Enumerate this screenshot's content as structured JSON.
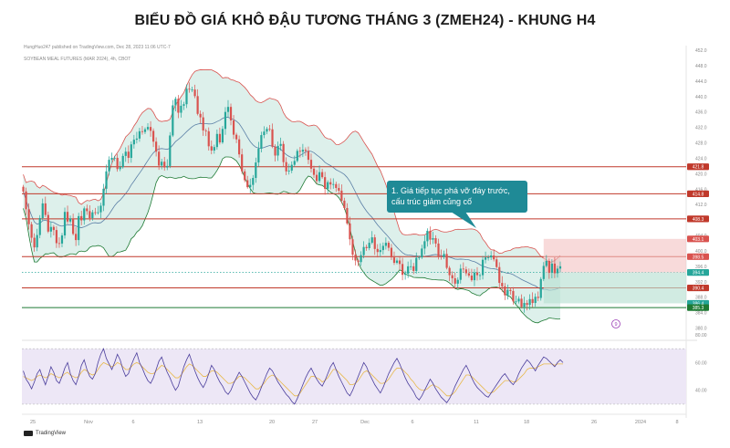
{
  "header": {
    "title": "BIỂU ĐỒ GIÁ KHÔ ĐẬU TƯƠNG THÁNG 3 (ZMEH24) - KHUNG H4",
    "publisher": "HungHuo247 published on TradingView.com, Dec 28, 2023 11:06 UTC-7",
    "symbol": "SOYBEAN MEAL FUTURES (MAR 2024), 4h, CBOT",
    "logo": "TradingView"
  },
  "colors": {
    "up": "#26a69a",
    "down": "#d9534f",
    "bb_band": "#d9534f",
    "bb_fill": "#cfe9e2",
    "mid_band": "#5b7fa6",
    "level_line": "#c0392b",
    "support_green": "#1e7a34",
    "callout": "#1f8a96",
    "rsi_line": "#4b3e9c",
    "rsi_ma": "#e8b94b",
    "rsi_fill": "#ede7f6"
  },
  "chart_data": [
    {
      "type": "candlestick",
      "title": "",
      "ylim": [
        378,
        452
      ],
      "y_ticks": [
        380.0,
        384.0,
        388.0,
        392.0,
        396.0,
        400.0,
        404.0,
        408.0,
        412.0,
        416.0,
        420.0,
        424.0,
        428.0,
        432.0,
        436.0,
        440.0,
        444.0,
        448.0,
        452.0
      ],
      "x_tick_labels": [
        "25",
        "Nov",
        "6",
        "13",
        "20",
        "27",
        "Dec",
        "6",
        "11",
        "18",
        "26",
        "2024",
        "8"
      ],
      "close_series": [
        415.4,
        410.8,
        406.9,
        403.4,
        400.9,
        404.1,
        408.5,
        412.3,
        409.3,
        405.0,
        406.2,
        405.4,
        402.0,
        401.9,
        404.0,
        410.1,
        407.6,
        408.4,
        404.4,
        402.8,
        409.0,
        407.9,
        411.0,
        410.3,
        408.5,
        410.0,
        409.8,
        410.0,
        411.7,
        416.1,
        420.6,
        423.6,
        424.1,
        424.1,
        421.2,
        421.7,
        424.6,
        425.7,
        424.1,
        427.6,
        428.8,
        429.1,
        431.0,
        430.8,
        431.5,
        432.1,
        431.1,
        428.3,
        425.7,
        422.1,
        423.1,
        421.6,
        422.0,
        429.9,
        437.7,
        439.4,
        435.8,
        437.6,
        438.0,
        442.0,
        441.8,
        441.8,
        440.1,
        435.5,
        434.6,
        431.2,
        431.0,
        427.1,
        426.0,
        426.9,
        430.3,
        428.1,
        431.6,
        436.0,
        437.3,
        433.8,
        430.1,
        428.9,
        425.0,
        420.6,
        418.3,
        416.5,
        417.1,
        418.9,
        422.9,
        426.5,
        430.0,
        430.9,
        431.6,
        431.5,
        427.0,
        424.7,
        427.2,
        427.7,
        423.0,
        420.6,
        420.8,
        422.3,
        423.3,
        425.9,
        425.7,
        426.2,
        425.9,
        423.6,
        421.3,
        419.7,
        418.1,
        420.4,
        419.1,
        416.1,
        417.8,
        417.2,
        417.3,
        416.3,
        415.6,
        413.0,
        411.1,
        407.1,
        403.0,
        399.0,
        397.5,
        397.1,
        398.9,
        401.0,
        400.7,
        402.1,
        403.5,
        400.5,
        399.7,
        400.2,
        401.3,
        402.1,
        400.8,
        398.3,
        396.9,
        397.5,
        396.6,
        393.8,
        394.1,
        396.0,
        396.0,
        394.8,
        398.2,
        398.3,
        400.6,
        402.5,
        405.2,
        402.9,
        403.3,
        401.9,
        398.6,
        398.4,
        399.2,
        395.6,
        393.7,
        392.9,
        391.5,
        392.5,
        395.4,
        395.2,
        394.2,
        393.6,
        392.4,
        394.4,
        393.7,
        393.7,
        397.7,
        398.3,
        398.3,
        398.8,
        397.8,
        395.8,
        391.7,
        390.8,
        388.5,
        389.9,
        389.6,
        386.9,
        386.9,
        387.6,
        385.5,
        386.5,
        386.0,
        387.5,
        386.5,
        388.1,
        387.8,
        392.7,
        396.1,
        397.4,
        394.3,
        396.7,
        394.2,
        395.4,
        396.0
      ],
      "levels": [
        421.8,
        414.8,
        408.3,
        398.5,
        390.4,
        385.3
      ],
      "price_labels": [
        "421.8",
        "414.8",
        "408.3",
        "403.1",
        "398.5",
        "396.0",
        "394.4",
        "392.0",
        "390.4",
        "388.0",
        "386.4",
        "385.3"
      ],
      "annotation": "1. Giá tiếp tục phá vỡ đáy trước, cấu trúc giảm củng cố",
      "trade_box": {
        "entry": 394.4,
        "stop": 403.1,
        "target": 386.4
      },
      "alert_marker": "9"
    },
    {
      "type": "line",
      "title": "",
      "ylim": [
        24,
        82
      ],
      "y_ticks": [
        40.0,
        60.0,
        80.0
      ],
      "bands": [
        30,
        70
      ],
      "series": [
        {
          "values": [
            54,
            48,
            45,
            41,
            46,
            52,
            55,
            49,
            44,
            50,
            57,
            53,
            47,
            45,
            50,
            56,
            60,
            52,
            47,
            44,
            50,
            58,
            62,
            55,
            50,
            48,
            52,
            60,
            66,
            70,
            63,
            59,
            55,
            60,
            66,
            62,
            55,
            50,
            52,
            58,
            63,
            67,
            60,
            56,
            51,
            47,
            45,
            49,
            55,
            61,
            64,
            58,
            53,
            49,
            44,
            40,
            43,
            50,
            57,
            62,
            66,
            60,
            54,
            49,
            45,
            42,
            46,
            52,
            58,
            55,
            50,
            46,
            43,
            39,
            37,
            40,
            45,
            49,
            53,
            50,
            46,
            42,
            38,
            35,
            33,
            37,
            42,
            47,
            52,
            56,
            54,
            50,
            46,
            43,
            40,
            37,
            35,
            32,
            30,
            34,
            39,
            44,
            49,
            53,
            56,
            52,
            48,
            45,
            43,
            47,
            52,
            57,
            60,
            55,
            50,
            46,
            42,
            38,
            36,
            40,
            45,
            50,
            55,
            60,
            57,
            52,
            48,
            44,
            41,
            38,
            42,
            47,
            52,
            56,
            60,
            63,
            59,
            54,
            49,
            45,
            42,
            39,
            35,
            33,
            36,
            40,
            44,
            48,
            45,
            41,
            38,
            35,
            33,
            31,
            34,
            38,
            43,
            47,
            51,
            55,
            58,
            54,
            49,
            45,
            42,
            40,
            38,
            36,
            35,
            38,
            41,
            44,
            47,
            50,
            52,
            49,
            46,
            44,
            47,
            52,
            56,
            59,
            62,
            60,
            57,
            54,
            58,
            61,
            64,
            63,
            61,
            59,
            57,
            60,
            62,
            60
          ]
        },
        {
          "values": [
            50,
            49,
            48,
            47,
            48,
            50,
            51,
            50,
            49,
            50,
            52,
            51,
            50,
            49,
            50,
            52,
            53,
            51,
            50,
            49,
            50,
            53,
            55,
            54,
            52,
            51,
            52,
            55,
            58,
            60,
            59,
            58,
            57,
            58,
            60,
            59,
            57,
            55,
            55,
            57,
            59,
            60,
            59,
            57,
            55,
            53,
            52,
            52,
            54,
            56,
            58,
            57,
            55,
            53,
            51,
            49,
            49,
            51,
            54,
            57,
            59,
            58,
            56,
            54,
            52,
            50,
            50,
            52,
            54,
            54,
            53,
            51,
            49,
            47,
            45,
            45,
            46,
            48,
            50,
            50,
            49,
            47,
            45,
            43,
            41,
            41,
            43,
            45,
            48,
            50,
            51,
            50,
            48,
            46,
            44,
            42,
            40,
            38,
            36,
            36,
            38,
            41,
            44,
            47,
            50,
            50,
            49,
            48,
            46,
            47,
            49,
            52,
            55,
            55,
            53,
            51,
            49,
            47,
            44,
            44,
            45,
            47,
            50,
            53,
            54,
            53,
            51,
            49,
            47,
            45,
            45,
            46,
            48,
            51,
            54,
            56,
            56,
            55,
            53,
            51,
            48,
            46,
            43,
            41,
            40,
            40,
            41,
            43,
            44,
            43,
            42,
            40,
            38,
            36,
            36,
            37,
            39,
            42,
            45,
            48,
            51,
            51,
            50,
            48,
            46,
            44,
            42,
            40,
            38,
            38,
            39,
            41,
            43,
            45,
            47,
            47,
            47,
            46,
            46,
            48,
            50,
            52,
            55,
            56,
            56,
            56,
            57,
            58,
            59,
            59,
            59,
            59,
            58,
            59,
            59,
            59
          ]
        }
      ]
    }
  ]
}
